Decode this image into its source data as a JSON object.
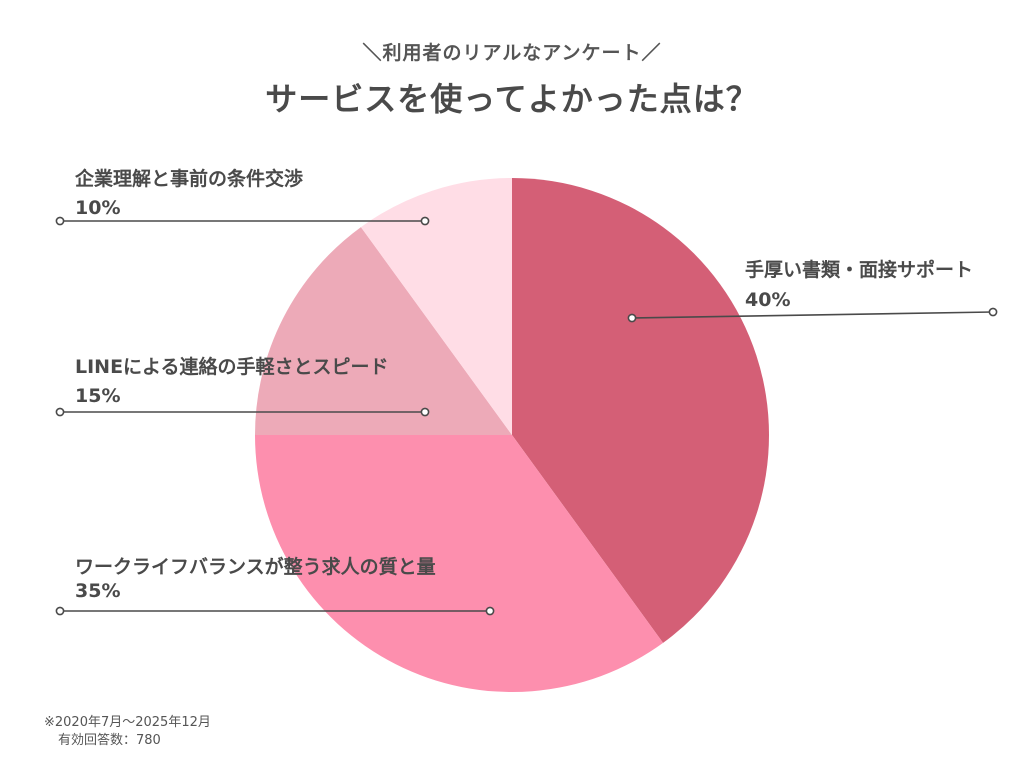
{
  "chart_data": {
    "type": "pie",
    "subtitle": "＼利用者のリアルなアンケート／",
    "title": "サービスを使ってよかった点は？",
    "slices": [
      {
        "label": "手厚い書類・面接サポート",
        "value": 40,
        "value_label": "40%",
        "color": "#d45f76"
      },
      {
        "label": "ワークライフバランスが整う求人の質と量",
        "value": 35,
        "value_label": "35%",
        "color": "#fd8fae"
      },
      {
        "label": "LINEによる連絡の手軽さとスピード",
        "value": 15,
        "value_label": "15%",
        "color": "#edaab8"
      },
      {
        "label": "企業理解と事前の条件交渉",
        "value": 10,
        "value_label": "10%",
        "color": "#ffdde6"
      }
    ],
    "start_angle": "12 o'clock",
    "direction": "clockwise",
    "legend": "none",
    "grid": false
  },
  "footnote": {
    "period": "※2020年7月〜2025年12月",
    "responses": "有効回答数：780"
  },
  "colors": {
    "leader_line": "#4a4a4a",
    "text": "#4a4a4a"
  }
}
